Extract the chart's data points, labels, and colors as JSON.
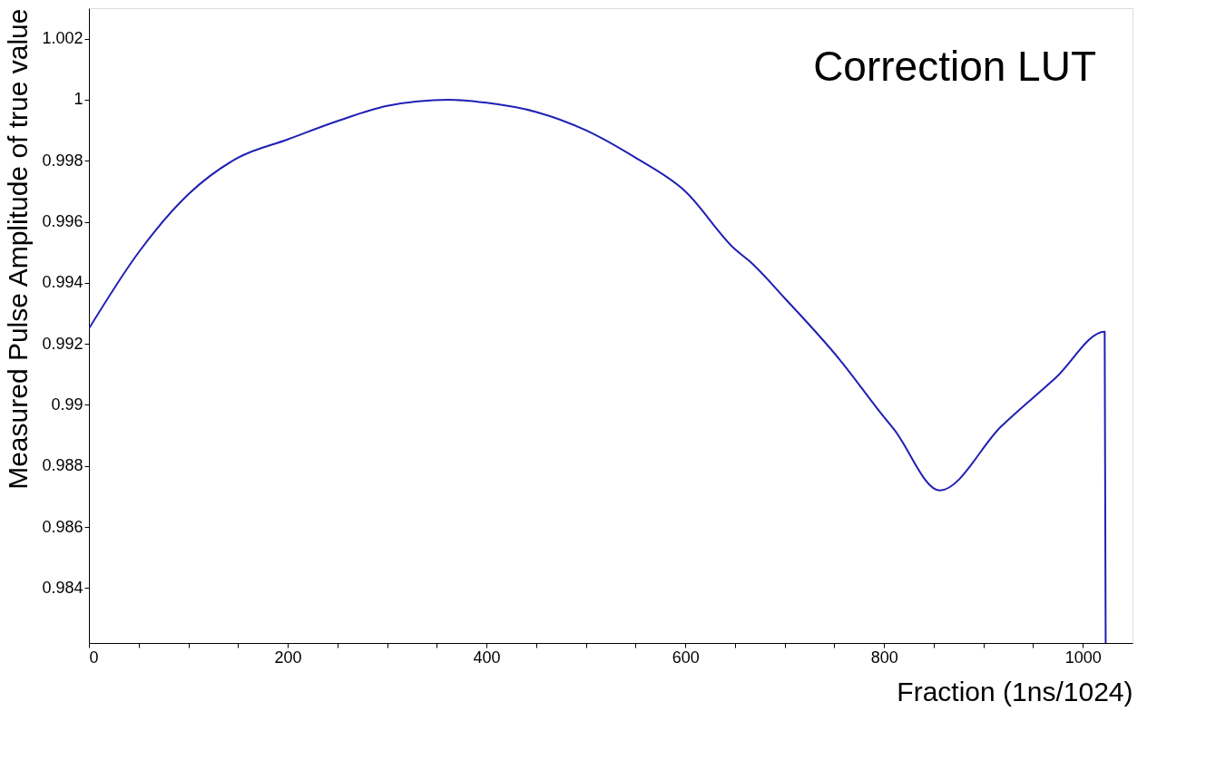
{
  "chart_data": {
    "type": "line",
    "title": "Correction LUT",
    "xlabel": "Fraction (1ns/1024)",
    "ylabel": "Measured Pulse Amplitude of true value",
    "x": [
      0,
      50,
      100,
      150,
      200,
      250,
      300,
      362,
      400,
      450,
      500,
      550,
      600,
      650,
      665,
      700,
      755,
      800,
      810,
      856,
      918,
      973,
      1022,
      1023
    ],
    "series": [
      {
        "color": "#1f1fb4",
        "values": [
          0.9925,
          0.995,
          0.9969,
          0.9981,
          0.9987,
          0.9993,
          0.9998,
          1.0,
          0.9999,
          0.9996,
          0.999,
          0.9981,
          0.997,
          0.9951,
          0.9947,
          0.9935,
          0.9915,
          0.9896,
          0.9892,
          0.9872,
          0.9893,
          0.9909,
          0.9924,
          0.9822
        ]
      }
    ],
    "xlim": [
      0,
      1050
    ],
    "ylim": [
      0.9822,
      1.003
    ],
    "xticks": [
      0,
      {
        "value": 50,
        "label": null
      },
      {
        "value": 100,
        "label": null
      },
      {
        "value": 150,
        "label": null
      },
      200,
      {
        "value": 250,
        "label": null
      },
      {
        "value": 300,
        "label": null
      },
      {
        "value": 350,
        "label": null
      },
      400,
      {
        "value": 450,
        "label": null
      },
      {
        "value": 500,
        "label": null
      },
      {
        "value": 550,
        "label": null
      },
      600,
      {
        "value": 650,
        "label": null
      },
      {
        "value": 700,
        "label": null
      },
      {
        "value": 750,
        "label": null
      },
      800,
      {
        "value": 850,
        "label": null
      },
      {
        "value": 900,
        "label": null
      },
      {
        "value": 950,
        "label": null
      },
      1000
    ],
    "yticks": [
      0.984,
      0.986,
      0.988,
      0.99,
      0.992,
      0.994,
      0.996,
      0.998,
      1,
      1.002
    ],
    "grid": false,
    "legend": false,
    "marker": "none",
    "line_style": "solid"
  }
}
